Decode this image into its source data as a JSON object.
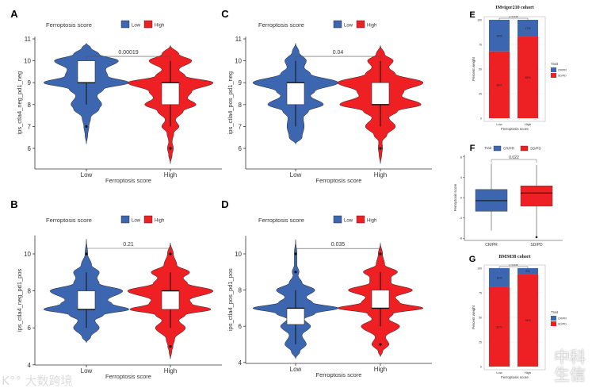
{
  "colors": {
    "low": "#3c66b0",
    "high": "#ee2024",
    "cr_pr": "#3c66b0",
    "sd_pd": "#ee2024",
    "box": "#ffffff"
  },
  "watermarks": {
    "left": "K°° 大数跨境",
    "right": "中科生信"
  },
  "chart_data": [
    {
      "panel": "A",
      "type": "violin",
      "legend_title": "Ferroptosis score",
      "legend": [
        "Low",
        "High"
      ],
      "xlabel": "Ferroptosis score",
      "ylabel": "ips_ctla4_neg_pd1_neg",
      "categories": [
        "Low",
        "High"
      ],
      "yticks": [
        "6",
        "7",
        "8",
        "9",
        "10",
        "11"
      ],
      "ylim": [
        5.2,
        11.1
      ],
      "pvalue": "0.00019",
      "groups": [
        {
          "name": "Low",
          "box": {
            "whisker_low": 8,
            "q1": 9,
            "median": 9,
            "q3": 10,
            "whisker_high": 10
          },
          "outliers": [
            7
          ],
          "density": [
            [
              6.2,
              0
            ],
            [
              6.6,
              0.03
            ],
            [
              7,
              0.06
            ],
            [
              7.4,
              0.1
            ],
            [
              7.8,
              0.3
            ],
            [
              8,
              0.36
            ],
            [
              8.4,
              0.25
            ],
            [
              8.7,
              0.4
            ],
            [
              9,
              1
            ],
            [
              9.3,
              0.5
            ],
            [
              9.6,
              0.45
            ],
            [
              10,
              0.75
            ],
            [
              10.3,
              0.3
            ],
            [
              10.6,
              0.1
            ],
            [
              10.8,
              0
            ]
          ]
        },
        {
          "name": "High",
          "box": {
            "whisker_low": 7,
            "q1": 8,
            "median": 9,
            "q3": 9,
            "whisker_high": 10
          },
          "outliers": [
            6
          ],
          "density": [
            [
              5.3,
              0
            ],
            [
              5.7,
              0.04
            ],
            [
              6,
              0.07
            ],
            [
              6.3,
              0.04
            ],
            [
              6.7,
              0.08
            ],
            [
              7,
              0.2
            ],
            [
              7.3,
              0.12
            ],
            [
              7.7,
              0.3
            ],
            [
              8,
              0.6
            ],
            [
              8.3,
              0.4
            ],
            [
              8.6,
              0.5
            ],
            [
              9,
              1
            ],
            [
              9.3,
              0.35
            ],
            [
              9.6,
              0.2
            ],
            [
              10,
              0.5
            ],
            [
              10.3,
              0.2
            ],
            [
              10.7,
              0
            ]
          ]
        }
      ]
    },
    {
      "panel": "C",
      "type": "violin",
      "legend_title": "Ferroptosis score",
      "legend": [
        "Low",
        "High"
      ],
      "xlabel": "Ferroptosis score",
      "ylabel": "ips_ctla4_pos_pd1_neg",
      "categories": [
        "Low",
        "High"
      ],
      "yticks": [
        "6",
        "7",
        "8",
        "9",
        "10",
        "11"
      ],
      "ylim": [
        5.2,
        11.1
      ],
      "pvalue": "0.04",
      "groups": [
        {
          "name": "Low",
          "box": {
            "whisker_low": 7,
            "q1": 8,
            "median": 9,
            "q3": 9,
            "whisker_high": 10
          },
          "outliers": [],
          "density": [
            [
              6.2,
              0
            ],
            [
              6.5,
              0.15
            ],
            [
              7,
              0.2
            ],
            [
              7.4,
              0.18
            ],
            [
              7.7,
              0.3
            ],
            [
              8,
              0.65
            ],
            [
              8.4,
              0.35
            ],
            [
              8.6,
              0.45
            ],
            [
              9,
              1
            ],
            [
              9.4,
              0.35
            ],
            [
              9.7,
              0.2
            ],
            [
              10,
              0.25
            ],
            [
              10.4,
              0.08
            ],
            [
              10.8,
              0
            ]
          ]
        },
        {
          "name": "High",
          "box": {
            "whisker_low": 7,
            "q1": 8,
            "median": 8,
            "q3": 9,
            "whisker_high": 10
          },
          "outliers": [
            6
          ],
          "density": [
            [
              5.3,
              0
            ],
            [
              5.7,
              0.03
            ],
            [
              6,
              0.05
            ],
            [
              6.3,
              0.04
            ],
            [
              6.6,
              0.15
            ],
            [
              7,
              0.35
            ],
            [
              7.4,
              0.2
            ],
            [
              7.7,
              0.4
            ],
            [
              8,
              0.95
            ],
            [
              8.4,
              0.5
            ],
            [
              8.6,
              0.55
            ],
            [
              9,
              1
            ],
            [
              9.4,
              0.35
            ],
            [
              9.7,
              0.2
            ],
            [
              10,
              0.3
            ],
            [
              10.3,
              0.1
            ],
            [
              10.7,
              0
            ]
          ]
        }
      ]
    },
    {
      "panel": "B",
      "type": "violin",
      "legend_title": "Ferroptosis score",
      "legend": [
        "Low",
        "High"
      ],
      "xlabel": "Ferroptosis score",
      "ylabel": "ips_ctla4_neg_pd1_pos",
      "categories": [
        "Low",
        "High"
      ],
      "yticks": [
        "4",
        "6",
        "8",
        "10"
      ],
      "ylim": [
        4,
        11
      ],
      "pvalue": "0.21",
      "groups": [
        {
          "name": "Low",
          "box": {
            "whisker_low": 6,
            "q1": 7,
            "median": 7,
            "q3": 8,
            "whisker_high": 9
          },
          "outliers": [
            10
          ],
          "density": [
            [
              5.2,
              0
            ],
            [
              5.5,
              0.1
            ],
            [
              6,
              0.3
            ],
            [
              6.4,
              0.2
            ],
            [
              6.7,
              0.4
            ],
            [
              7,
              1
            ],
            [
              7.3,
              0.6
            ],
            [
              7.5,
              0.5
            ],
            [
              8,
              0.85
            ],
            [
              8.4,
              0.3
            ],
            [
              8.7,
              0.25
            ],
            [
              9,
              0.3
            ],
            [
              9.4,
              0.12
            ],
            [
              10,
              0.03
            ],
            [
              10.8,
              0
            ]
          ]
        },
        {
          "name": "High",
          "box": {
            "whisker_low": 6,
            "q1": 7,
            "median": 8,
            "q3": 8,
            "whisker_high": 9
          },
          "outliers": [
            5,
            10
          ],
          "density": [
            [
              4.3,
              0
            ],
            [
              4.7,
              0.03
            ],
            [
              5,
              0.06
            ],
            [
              5.4,
              0.1
            ],
            [
              6,
              0.35
            ],
            [
              6.4,
              0.2
            ],
            [
              6.7,
              0.35
            ],
            [
              7,
              0.95
            ],
            [
              7.3,
              0.5
            ],
            [
              7.5,
              0.45
            ],
            [
              8,
              1
            ],
            [
              8.4,
              0.4
            ],
            [
              8.7,
              0.3
            ],
            [
              9,
              0.45
            ],
            [
              9.4,
              0.15
            ],
            [
              10,
              0.07
            ],
            [
              10.6,
              0
            ]
          ]
        }
      ]
    },
    {
      "panel": "D",
      "type": "violin",
      "legend_title": "Ferroptosis score",
      "legend": [
        "Low",
        "High"
      ],
      "xlabel": "Ferroptosis score",
      "ylabel": "ips_ctla4_pos_pd1_pos",
      "categories": [
        "Low",
        "High"
      ],
      "yticks": [
        "4",
        "6",
        "8",
        "10"
      ],
      "ylim": [
        4,
        11
      ],
      "pvalue": "0.035",
      "groups": [
        {
          "name": "Low",
          "box": {
            "whisker_low": 5,
            "q1": 6.1,
            "median": 7,
            "q3": 7,
            "whisker_high": 8
          },
          "outliers": [
            9,
            10
          ],
          "density": [
            [
              4.2,
              0
            ],
            [
              4.6,
              0.1
            ],
            [
              5,
              0.25
            ],
            [
              5.5,
              0.15
            ],
            [
              6,
              0.35
            ],
            [
              6.4,
              0.2
            ],
            [
              6.7,
              0.45
            ],
            [
              7,
              1
            ],
            [
              7.3,
              0.4
            ],
            [
              7.6,
              0.25
            ],
            [
              8,
              0.45
            ],
            [
              8.4,
              0.15
            ],
            [
              8.8,
              0.06
            ],
            [
              9,
              0.08
            ],
            [
              9.4,
              0.03
            ],
            [
              10,
              0.03
            ],
            [
              10.8,
              0
            ]
          ]
        },
        {
          "name": "High",
          "box": {
            "whisker_low": 6,
            "q1": 7,
            "median": 7,
            "q3": 8,
            "whisker_high": 9
          },
          "outliers": [
            5,
            10
          ],
          "density": [
            [
              4.3,
              0
            ],
            [
              4.6,
              0.05
            ],
            [
              5,
              0.2
            ],
            [
              5.4,
              0.12
            ],
            [
              6,
              0.45
            ],
            [
              6.4,
              0.2
            ],
            [
              6.7,
              0.3
            ],
            [
              7,
              1
            ],
            [
              7.3,
              0.45
            ],
            [
              7.6,
              0.35
            ],
            [
              8,
              0.75
            ],
            [
              8.4,
              0.25
            ],
            [
              8.7,
              0.25
            ],
            [
              9,
              0.4
            ],
            [
              9.4,
              0.1
            ],
            [
              10,
              0.05
            ],
            [
              10.6,
              0
            ]
          ]
        }
      ]
    },
    {
      "panel": "E",
      "type": "bar",
      "stacked": true,
      "title": "IMvigor210 cohort",
      "xlabel": "Ferroptosis score",
      "ylabel": "Percent weight",
      "categories": [
        "Low",
        "High"
      ],
      "yticks": [
        "0",
        "25",
        "50",
        "75",
        "100"
      ],
      "ylim": [
        0,
        100
      ],
      "pvalue": "p=0.048",
      "legend_title": "Trait",
      "legend": [
        "CR/PR",
        "SD/PD"
      ],
      "series": [
        {
          "name": "CR/PR",
          "values": [
            32,
            17
          ],
          "labels": [
            "32%",
            "17%"
          ]
        },
        {
          "name": "SD/PD",
          "values": [
            68,
            83
          ],
          "labels": [
            "68%",
            "83%"
          ]
        }
      ]
    },
    {
      "panel": "F",
      "type": "box",
      "xlabel": "",
      "ylabel": "Ferroptosis score",
      "categories": [
        "CR/PR",
        "SD/PD"
      ],
      "yticks": [
        "-8",
        "-4",
        "0",
        "4",
        "8"
      ],
      "ylim": [
        -8.5,
        8.5
      ],
      "pvalue": "0.022",
      "legend_title": "Trait",
      "legend": [
        "CR/PR",
        "SD/PD"
      ],
      "groups": [
        {
          "name": "CR/PR",
          "box": {
            "whisker_low": -6.5,
            "q1": -2.7,
            "median": -0.6,
            "q3": 1.6,
            "whisker_high": 6.7
          },
          "outliers": []
        },
        {
          "name": "SD/PD",
          "box": {
            "whisker_low": -7.8,
            "q1": -1.7,
            "median": 0.9,
            "q3": 2.3,
            "whisker_high": 6.4
          },
          "outliers": [
            -7.8
          ]
        }
      ]
    },
    {
      "panel": "G",
      "type": "bar",
      "stacked": true,
      "title": "BMS038 cohort",
      "xlabel": "Ferroptosis score",
      "ylabel": "Percent weight",
      "categories": [
        "Low",
        "High"
      ],
      "yticks": [
        "0",
        "25",
        "50",
        "75",
        "100"
      ],
      "ylim": [
        0,
        100
      ],
      "pvalue": "p=0.038",
      "legend_title": "Trait",
      "legend": [
        "CR/PR",
        "SD/PD"
      ],
      "series": [
        {
          "name": "CR/PR",
          "values": [
            19,
            6
          ],
          "labels": [
            "19%",
            "6%"
          ]
        },
        {
          "name": "SD/PD",
          "values": [
            81,
            94
          ],
          "labels": [
            "81%",
            "94%"
          ]
        }
      ]
    }
  ]
}
